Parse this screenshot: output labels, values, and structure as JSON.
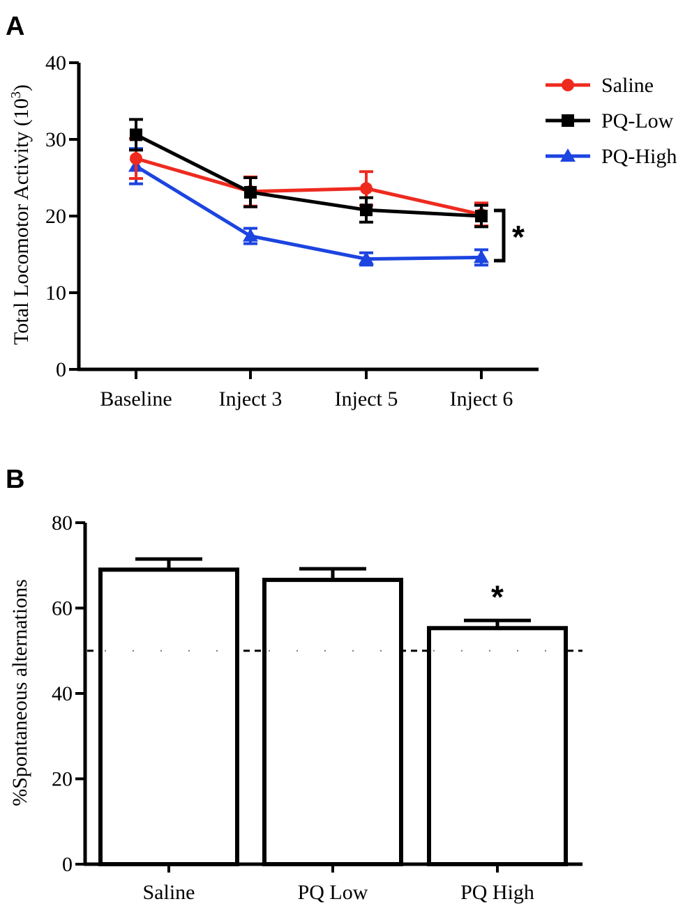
{
  "chart_data": [
    {
      "panel": "A",
      "type": "line",
      "ylabel": "Total Locomotor Activity (10",
      "ylabel_sup": "3",
      "ylabel_close": ")",
      "xlabel": "",
      "ylim": [
        0,
        40
      ],
      "yticks": [
        0,
        10,
        20,
        30,
        40
      ],
      "categories": [
        "Baseline",
        "Inject 3",
        "Inject 5",
        "Inject 6"
      ],
      "series": [
        {
          "name": "Saline",
          "color": "#ee2a1f",
          "marker": "circle",
          "values": [
            27.5,
            23.2,
            23.6,
            20.2
          ],
          "errors": [
            2.6,
            1.9,
            2.2,
            1.5
          ]
        },
        {
          "name": "PQ-Low",
          "color": "#000000",
          "marker": "square",
          "values": [
            30.6,
            23.1,
            20.8,
            20.0
          ],
          "errors": [
            2.0,
            1.9,
            1.6,
            1.4
          ]
        },
        {
          "name": "PQ-High",
          "color": "#1c44e0",
          "marker": "triangle",
          "values": [
            26.5,
            17.4,
            14.4,
            14.6
          ],
          "errors": [
            2.3,
            1.0,
            0.8,
            1.0
          ]
        }
      ],
      "significance": "*",
      "legend_position": "top-right"
    },
    {
      "panel": "B",
      "type": "bar",
      "ylabel": "%Spontaneous alternations",
      "xlabel": "",
      "ylim": [
        0,
        80
      ],
      "yticks": [
        0,
        20,
        40,
        60,
        80
      ],
      "categories": [
        "Saline",
        "PQ Low",
        "PQ High"
      ],
      "values": [
        69.0,
        66.6,
        55.3
      ],
      "errors": [
        2.5,
        2.6,
        1.8
      ],
      "reference_line": 50,
      "significance": {
        "category": "PQ High",
        "label": "*"
      }
    }
  ]
}
